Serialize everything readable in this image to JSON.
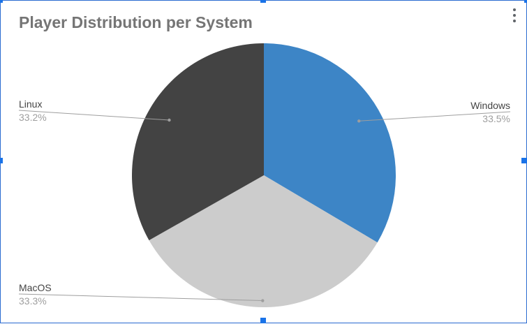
{
  "chart_data": {
    "type": "pie",
    "title": "Player Distribution per System",
    "slices": [
      {
        "label": "Windows",
        "value": 33.5,
        "display": "33.5%",
        "color": "#3d85c6"
      },
      {
        "label": "MacOS",
        "value": 33.3,
        "display": "33.3%",
        "color": "#cccccc"
      },
      {
        "label": "Linux",
        "value": 33.2,
        "display": "33.2%",
        "color": "#434343"
      }
    ],
    "start_angle_deg": 0,
    "direction": "clockwise",
    "legend": "none",
    "data_labels": "outside-with-leader-lines"
  },
  "ui": {
    "menu_icon": "more-vert-icon",
    "frame_color": "#2a6bd1",
    "selection_handle_color": "#1a73e8"
  }
}
